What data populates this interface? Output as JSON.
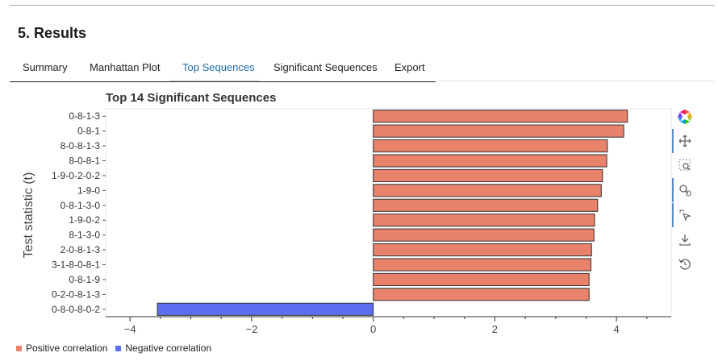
{
  "section": {
    "title": "5. Results"
  },
  "tabs": [
    {
      "label": "Summary",
      "active": false
    },
    {
      "label": "Manhattan Plot",
      "active": false
    },
    {
      "label": "Top Sequences",
      "active": true
    },
    {
      "label": "Significant Sequences",
      "active": false
    },
    {
      "label": "Export",
      "active": false
    }
  ],
  "toolbar": {
    "tools": [
      "bokeh-logo-icon",
      "pan-icon",
      "box-zoom-icon",
      "wheel-zoom-icon",
      "tap-select-icon",
      "save-icon",
      "reset-icon"
    ]
  },
  "legend": {
    "items": [
      {
        "label": "Positive correlation",
        "color": "#e9826b"
      },
      {
        "label": "Negative correlation",
        "color": "#5b6ff0"
      }
    ]
  },
  "chart_data": {
    "type": "bar",
    "orientation": "horizontal",
    "title": "Top 14 Significant Sequences",
    "xlabel": "",
    "ylabel": "Test statistic (t)",
    "xlim": [
      -4.4,
      4.9
    ],
    "xticks": [
      -4,
      -2,
      0,
      2,
      4
    ],
    "grid": false,
    "legend_position": "bottom-left",
    "categories": [
      "0-8-1-3",
      "0-8-1",
      "8-0-8-1-3",
      "8-0-8-1",
      "1-9-0-2-0-2",
      "1-9-0",
      "0-8-1-3-0",
      "1-9-0-2",
      "8-1-3-0",
      "2-0-8-1-3",
      "3-1-8-0-8-1",
      "0-8-1-9",
      "0-2-0-8-1-3",
      "0-8-0-8-0-2"
    ],
    "values": [
      4.18,
      4.12,
      3.85,
      3.84,
      3.77,
      3.75,
      3.69,
      3.64,
      3.63,
      3.59,
      3.58,
      3.55,
      3.55,
      -3.55
    ],
    "colors": {
      "positive": "#e9826b",
      "negative": "#5b6ff0"
    }
  }
}
